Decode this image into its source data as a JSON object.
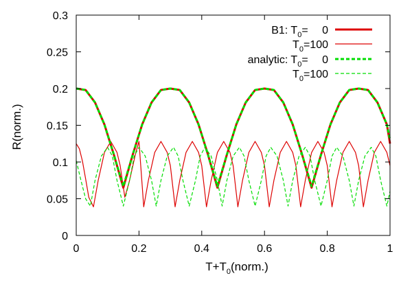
{
  "chart_data": {
    "type": "line",
    "title": "",
    "xlabel": {
      "main": "T+T",
      "sub": "0",
      "rest": "(norm.)"
    },
    "ylabel": "R(norm.)",
    "xlim": [
      0,
      1
    ],
    "ylim": [
      0,
      0.3
    ],
    "xticks": [
      "0",
      "0.2",
      "0.4",
      "0.6",
      "0.8",
      "1"
    ],
    "yticks": [
      "0",
      "0.05",
      "0.1",
      "0.15",
      "0.2",
      "0.25",
      "0.3"
    ],
    "grid": false,
    "legend_position": "top-right",
    "legend": [
      {
        "prefix": "B1:",
        "sym": "T",
        "sub": "0",
        "eq": "=",
        "val": "0"
      },
      {
        "prefix": "",
        "sym": "T",
        "sub": "0",
        "eq": "=",
        "val": "100"
      },
      {
        "prefix": "analytic:",
        "sym": "T",
        "sub": "0",
        "eq": "=",
        "val": "0"
      },
      {
        "prefix": "",
        "sym": "T",
        "sub": "0",
        "eq": "=",
        "val": "100"
      }
    ],
    "series": [
      {
        "color": "#dd0000",
        "style": "solid-thick",
        "x": [
          0,
          0.03,
          0.06,
          0.09,
          0.12,
          0.15,
          0.18,
          0.21,
          0.24,
          0.27,
          0.3,
          0.33,
          0.36,
          0.39,
          0.42,
          0.45,
          0.48,
          0.51,
          0.54,
          0.57,
          0.6,
          0.63,
          0.66,
          0.69,
          0.72,
          0.75,
          0.78,
          0.81,
          0.84,
          0.87,
          0.9,
          0.93,
          0.96,
          0.99,
          1.0
        ],
        "y": [
          0.2,
          0.198,
          0.181,
          0.151,
          0.11,
          0.065,
          0.11,
          0.151,
          0.181,
          0.198,
          0.2,
          0.198,
          0.181,
          0.151,
          0.11,
          0.065,
          0.11,
          0.151,
          0.181,
          0.198,
          0.2,
          0.198,
          0.181,
          0.151,
          0.11,
          0.065,
          0.11,
          0.151,
          0.181,
          0.198,
          0.2,
          0.198,
          0.181,
          0.151,
          0.125
        ]
      },
      {
        "color": "#dd0000",
        "style": "solid-thin",
        "x": [
          0,
          0.01,
          0.02,
          0.03,
          0.04,
          0.055,
          0.07,
          0.09,
          0.11,
          0.13,
          0.14,
          0.155,
          0.17,
          0.19,
          0.2,
          0.215,
          0.23,
          0.25,
          0.27,
          0.29,
          0.3,
          0.315,
          0.33,
          0.35,
          0.37,
          0.39,
          0.4,
          0.415,
          0.43,
          0.45,
          0.47,
          0.49,
          0.5,
          0.515,
          0.53,
          0.55,
          0.57,
          0.59,
          0.6,
          0.615,
          0.63,
          0.65,
          0.67,
          0.69,
          0.7,
          0.715,
          0.73,
          0.75,
          0.77,
          0.79,
          0.8,
          0.815,
          0.83,
          0.85,
          0.87,
          0.89,
          0.9,
          0.915,
          0.93,
          0.95,
          0.97,
          0.99,
          1.0
        ],
        "y": [
          0.125,
          0.118,
          0.101,
          0.077,
          0.052,
          0.039,
          0.075,
          0.113,
          0.128,
          0.113,
          0.095,
          0.052,
          0.075,
          0.113,
          0.128,
          0.039,
          0.075,
          0.113,
          0.128,
          0.113,
          0.095,
          0.039,
          0.075,
          0.113,
          0.128,
          0.113,
          0.095,
          0.039,
          0.075,
          0.113,
          0.128,
          0.113,
          0.095,
          0.039,
          0.075,
          0.113,
          0.128,
          0.113,
          0.095,
          0.039,
          0.075,
          0.113,
          0.128,
          0.113,
          0.095,
          0.039,
          0.075,
          0.113,
          0.128,
          0.113,
          0.095,
          0.039,
          0.075,
          0.113,
          0.128,
          0.113,
          0.095,
          0.039,
          0.075,
          0.113,
          0.128,
          0.113,
          0.095
        ]
      },
      {
        "color": "#00dd00",
        "style": "dashed-thick",
        "x": [
          0,
          0.03,
          0.06,
          0.09,
          0.12,
          0.15,
          0.18,
          0.21,
          0.24,
          0.27,
          0.3,
          0.33,
          0.36,
          0.39,
          0.42,
          0.45,
          0.48,
          0.51,
          0.54,
          0.57,
          0.6,
          0.63,
          0.66,
          0.69,
          0.72,
          0.75,
          0.78,
          0.81,
          0.84,
          0.87,
          0.9,
          0.93,
          0.96,
          0.99,
          1.0
        ],
        "y": [
          0.2,
          0.198,
          0.181,
          0.151,
          0.11,
          0.067,
          0.11,
          0.151,
          0.181,
          0.198,
          0.2,
          0.198,
          0.181,
          0.151,
          0.11,
          0.067,
          0.11,
          0.151,
          0.181,
          0.198,
          0.2,
          0.198,
          0.181,
          0.151,
          0.11,
          0.067,
          0.11,
          0.151,
          0.181,
          0.198,
          0.2,
          0.198,
          0.181,
          0.151,
          0.13
        ]
      },
      {
        "color": "#00dd00",
        "style": "dashed-thin",
        "x": [
          0,
          0.015,
          0.03,
          0.045,
          0.06,
          0.08,
          0.1,
          0.115,
          0.13,
          0.15,
          0.17,
          0.185,
          0.2,
          0.22,
          0.24,
          0.255,
          0.27,
          0.29,
          0.31,
          0.325,
          0.34,
          0.36,
          0.38,
          0.395,
          0.41,
          0.43,
          0.45,
          0.465,
          0.48,
          0.5,
          0.52,
          0.535,
          0.55,
          0.57,
          0.59,
          0.605,
          0.62,
          0.64,
          0.66,
          0.675,
          0.69,
          0.71,
          0.73,
          0.745,
          0.76,
          0.78,
          0.8,
          0.815,
          0.83,
          0.85,
          0.87,
          0.885,
          0.9,
          0.92,
          0.94,
          0.955,
          0.97,
          0.99,
          1.0
        ],
        "y": [
          0.102,
          0.075,
          0.05,
          0.04,
          0.075,
          0.108,
          0.12,
          0.108,
          0.075,
          0.04,
          0.075,
          0.108,
          0.12,
          0.108,
          0.075,
          0.04,
          0.075,
          0.108,
          0.12,
          0.108,
          0.075,
          0.04,
          0.075,
          0.108,
          0.12,
          0.108,
          0.075,
          0.04,
          0.075,
          0.108,
          0.12,
          0.108,
          0.075,
          0.04,
          0.075,
          0.108,
          0.12,
          0.108,
          0.075,
          0.04,
          0.075,
          0.108,
          0.12,
          0.108,
          0.075,
          0.04,
          0.075,
          0.108,
          0.12,
          0.108,
          0.075,
          0.04,
          0.075,
          0.108,
          0.12,
          0.108,
          0.075,
          0.04,
          0.06
        ]
      }
    ]
  }
}
